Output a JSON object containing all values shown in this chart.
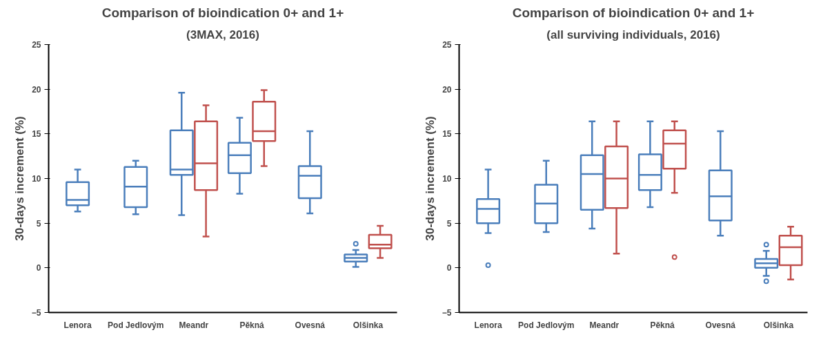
{
  "chart_data": [
    {
      "type": "box",
      "title": "Comparison of bioindication 0+ and 1+",
      "subtitle": "(3MAX, 2016)",
      "ylabel": "30-days increment (%)",
      "categories": [
        "Lenora",
        "Pod Jedlovým",
        "Meandr",
        "Pěkná",
        "Ovesná",
        "Olšinka"
      ],
      "ylim": [
        -5,
        25
      ],
      "yticks": [
        -5,
        0,
        5,
        10,
        15,
        20,
        25
      ],
      "grid": false,
      "series": [
        {
          "color": "#4a7ebb",
          "boxes": [
            {
              "low": 6.3,
              "q1": 7.0,
              "median": 7.6,
              "q3": 9.6,
              "high": 11.0
            },
            {
              "low": 6.0,
              "q1": 6.8,
              "median": 9.1,
              "q3": 11.3,
              "high": 12.0
            },
            {
              "low": 5.9,
              "q1": 10.4,
              "median": 11.0,
              "q3": 15.4,
              "high": 19.6
            },
            {
              "low": 8.3,
              "q1": 10.6,
              "median": 12.6,
              "q3": 14.0,
              "high": 16.8
            },
            {
              "low": 6.1,
              "q1": 7.8,
              "median": 10.3,
              "q3": 11.4,
              "high": 15.3
            },
            {
              "low": 0.1,
              "q1": 0.7,
              "median": 1.1,
              "q3": 1.5,
              "high": 2.0,
              "outliers": [
                2.7
              ]
            }
          ]
        },
        {
          "color": "#c0504d",
          "boxes": [
            null,
            null,
            {
              "low": 3.5,
              "q1": 8.7,
              "median": 11.7,
              "q3": 16.4,
              "high": 18.2
            },
            {
              "low": 11.4,
              "q1": 14.2,
              "median": 15.3,
              "q3": 18.6,
              "high": 19.9
            },
            null,
            {
              "low": 1.1,
              "q1": 2.2,
              "median": 2.6,
              "q3": 3.7,
              "high": 4.7
            }
          ]
        }
      ]
    },
    {
      "type": "box",
      "title": "Comparison of bioindication 0+ and 1+",
      "subtitle": "(all surviving individuals, 2016)",
      "ylabel": "30-days increment (%)",
      "categories": [
        "Lenora",
        "Pod Jedlovým",
        "Meandr",
        "Pěkná",
        "Ovesná",
        "Olšinka"
      ],
      "ylim": [
        -5,
        25
      ],
      "yticks": [
        -5,
        0,
        5,
        10,
        15,
        20,
        25
      ],
      "grid": false,
      "series": [
        {
          "color": "#4a7ebb",
          "boxes": [
            {
              "low": 3.9,
              "q1": 5.0,
              "median": 6.6,
              "q3": 7.7,
              "high": 11.0,
              "outliers": [
                0.3
              ]
            },
            {
              "low": 4.0,
              "q1": 5.0,
              "median": 7.2,
              "q3": 9.3,
              "high": 12.0
            },
            {
              "low": 4.4,
              "q1": 6.5,
              "median": 10.5,
              "q3": 12.6,
              "high": 16.4
            },
            {
              "low": 6.8,
              "q1": 8.7,
              "median": 10.4,
              "q3": 12.7,
              "high": 16.4
            },
            {
              "low": 3.6,
              "q1": 5.3,
              "median": 8.0,
              "q3": 10.9,
              "high": 15.3
            },
            {
              "low": -0.9,
              "q1": 0.0,
              "median": 0.5,
              "q3": 1.0,
              "high": 1.9,
              "outliers": [
                2.6,
                -1.5
              ]
            }
          ]
        },
        {
          "color": "#c0504d",
          "boxes": [
            null,
            null,
            {
              "low": 1.6,
              "q1": 6.7,
              "median": 10.0,
              "q3": 13.6,
              "high": 16.4
            },
            {
              "low": 8.4,
              "q1": 11.1,
              "median": 13.9,
              "q3": 15.4,
              "high": 16.4,
              "outliers": [
                1.2
              ]
            },
            null,
            {
              "low": -1.3,
              "q1": 0.3,
              "median": 2.3,
              "q3": 3.6,
              "high": 4.6
            }
          ]
        }
      ]
    }
  ]
}
